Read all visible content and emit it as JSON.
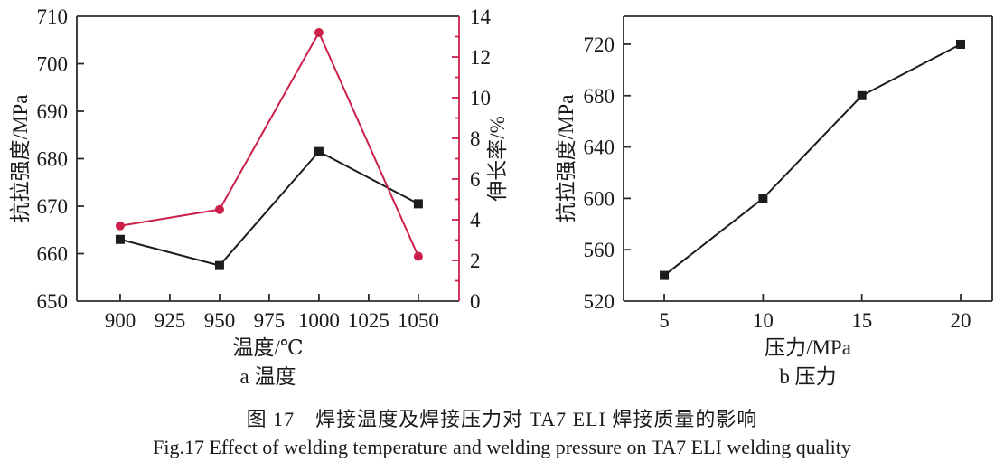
{
  "figure": {
    "caption_zh": "图 17　焊接温度及焊接压力对 TA7 ELI 焊接质量的影响",
    "caption_en": "Fig.17 Effect of welding temperature and welding pressure on TA7 ELI welding quality"
  },
  "colors": {
    "axis": "#2b2b2b",
    "black_series": "#1c1c1c",
    "red_series": "#cc1f4a",
    "text": "#1a1a1a"
  },
  "chart_data": [
    {
      "type": "line",
      "panel_label": "a 温度",
      "xlabel": "温度/℃",
      "ylabel_left": "抗拉强度/MPa",
      "ylabel_right": "伸长率/%",
      "x_ticks": [
        900,
        925,
        950,
        975,
        1000,
        1025,
        1050
      ],
      "xlim": [
        878.2,
        1070.5
      ],
      "ylim_left": [
        650,
        710
      ],
      "yticks_left": [
        650,
        660,
        670,
        680,
        690,
        700,
        710
      ],
      "ylim_right": [
        0,
        14
      ],
      "yticks_right": [
        0,
        2,
        4,
        6,
        8,
        10,
        12,
        14
      ],
      "yticks_right_minor_step": 1,
      "right_axis_color": "#cc1f4a",
      "grid": false,
      "legend": "none",
      "series": [
        {
          "name": "tensile-strength",
          "axis": "left",
          "color": "#1c1c1c",
          "marker": "square",
          "x": [
            900,
            950,
            1000,
            1050
          ],
          "y": [
            663,
            657.5,
            681.5,
            670.5
          ]
        },
        {
          "name": "elongation",
          "axis": "right",
          "color": "#cc1f4a",
          "marker": "circle",
          "x": [
            900,
            950,
            1000,
            1050
          ],
          "y": [
            3.7,
            4.5,
            13.2,
            2.2
          ]
        }
      ]
    },
    {
      "type": "line",
      "panel_label": "b 压力",
      "xlabel": "压力/MPa",
      "ylabel_left": "抗拉强度/MPa",
      "x_ticks": [
        5,
        10,
        15,
        20
      ],
      "xlim": [
        2.94,
        21.6
      ],
      "ylim_left": [
        520,
        741.8
      ],
      "yticks_left": [
        520,
        560,
        600,
        640,
        680,
        720
      ],
      "right_axis_color": "#2b2b2b",
      "grid": false,
      "legend": "none",
      "series": [
        {
          "name": "tensile-strength",
          "axis": "left",
          "color": "#1c1c1c",
          "marker": "square",
          "x": [
            5,
            10,
            15,
            20
          ],
          "y": [
            540,
            600,
            680,
            720
          ]
        }
      ]
    }
  ]
}
